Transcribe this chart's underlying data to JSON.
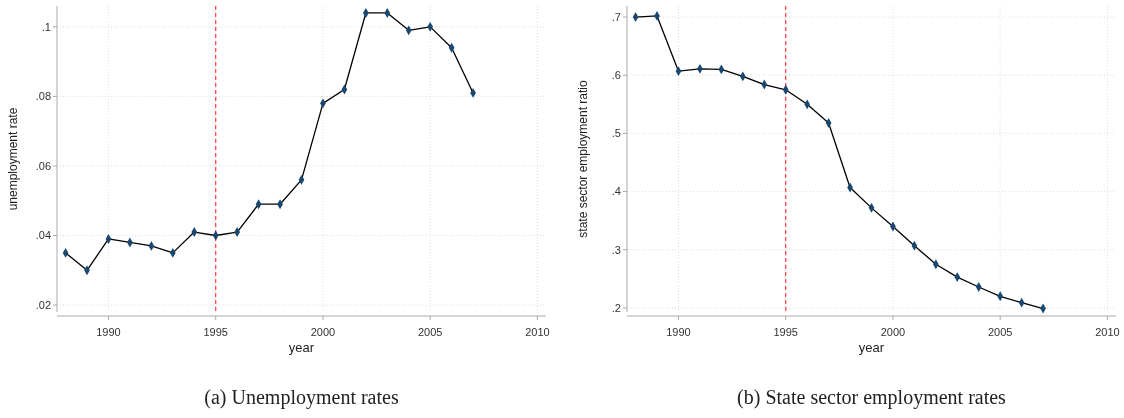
{
  "chart_data": [
    {
      "type": "line",
      "title": "(a) Unemployment rates",
      "xlabel": "year",
      "ylabel": "unemployment rate",
      "x": [
        1988,
        1989,
        1990,
        1991,
        1992,
        1993,
        1994,
        1995,
        1996,
        1997,
        1998,
        1999,
        2000,
        2001,
        2002,
        2003,
        2004,
        2005,
        2006,
        2007
      ],
      "series": [
        {
          "color": "#1a476f",
          "values": [
            0.035,
            0.03,
            0.039,
            0.038,
            0.037,
            0.035,
            0.041,
            0.04,
            0.041,
            0.049,
            0.049,
            0.056,
            0.078,
            0.082,
            0.104,
            0.104,
            0.099,
            0.1,
            0.094,
            0.081
          ]
        }
      ],
      "xlim": [
        1987.6,
        2010.4
      ],
      "xticks": [
        1990,
        1995,
        2000,
        2005,
        2010
      ],
      "ylim": [
        0.018,
        0.106
      ],
      "yticks": [
        {
          "value": 0.02,
          "label": ".02"
        },
        {
          "value": 0.04,
          "label": ".04"
        },
        {
          "value": 0.06,
          "label": ".06"
        },
        {
          "value": 0.08,
          "label": ".08"
        },
        {
          "value": 0.1,
          "label": ".1"
        }
      ],
      "ref_lines": [
        {
          "axis": "x",
          "value": 1995,
          "color": "#ff3b3b",
          "line_style": "dashed"
        }
      ],
      "grid": true,
      "marker": "diamond",
      "line_style": "solid"
    },
    {
      "type": "line",
      "title": "(b) State sector employment rates",
      "xlabel": "year",
      "ylabel": "state sector employment ratio",
      "x": [
        1988,
        1989,
        1990,
        1991,
        1992,
        1993,
        1994,
        1995,
        1996,
        1997,
        1998,
        1999,
        2000,
        2001,
        2002,
        2003,
        2004,
        2005,
        2006,
        2007
      ],
      "series": [
        {
          "color": "#1a476f",
          "values": [
            0.7,
            0.702,
            0.607,
            0.611,
            0.61,
            0.598,
            0.584,
            0.575,
            0.55,
            0.518,
            0.407,
            0.372,
            0.34,
            0.307,
            0.275,
            0.253,
            0.236,
            0.22,
            0.209,
            0.199
          ]
        }
      ],
      "xlim": [
        1987.6,
        2010.4
      ],
      "xticks": [
        1990,
        1995,
        2000,
        2005,
        2010
      ],
      "ylim": [
        0.193,
        0.719
      ],
      "yticks": [
        {
          "value": 0.2,
          "label": ".2"
        },
        {
          "value": 0.3,
          "label": ".3"
        },
        {
          "value": 0.4,
          "label": ".4"
        },
        {
          "value": 0.5,
          "label": ".5"
        },
        {
          "value": 0.6,
          "label": ".6"
        },
        {
          "value": 0.7,
          "label": ".7"
        }
      ],
      "ref_lines": [
        {
          "axis": "x",
          "value": 1995,
          "color": "#ff3b3b",
          "line_style": "dashed"
        }
      ],
      "grid": true,
      "marker": "diamond",
      "line_style": "solid"
    }
  ]
}
